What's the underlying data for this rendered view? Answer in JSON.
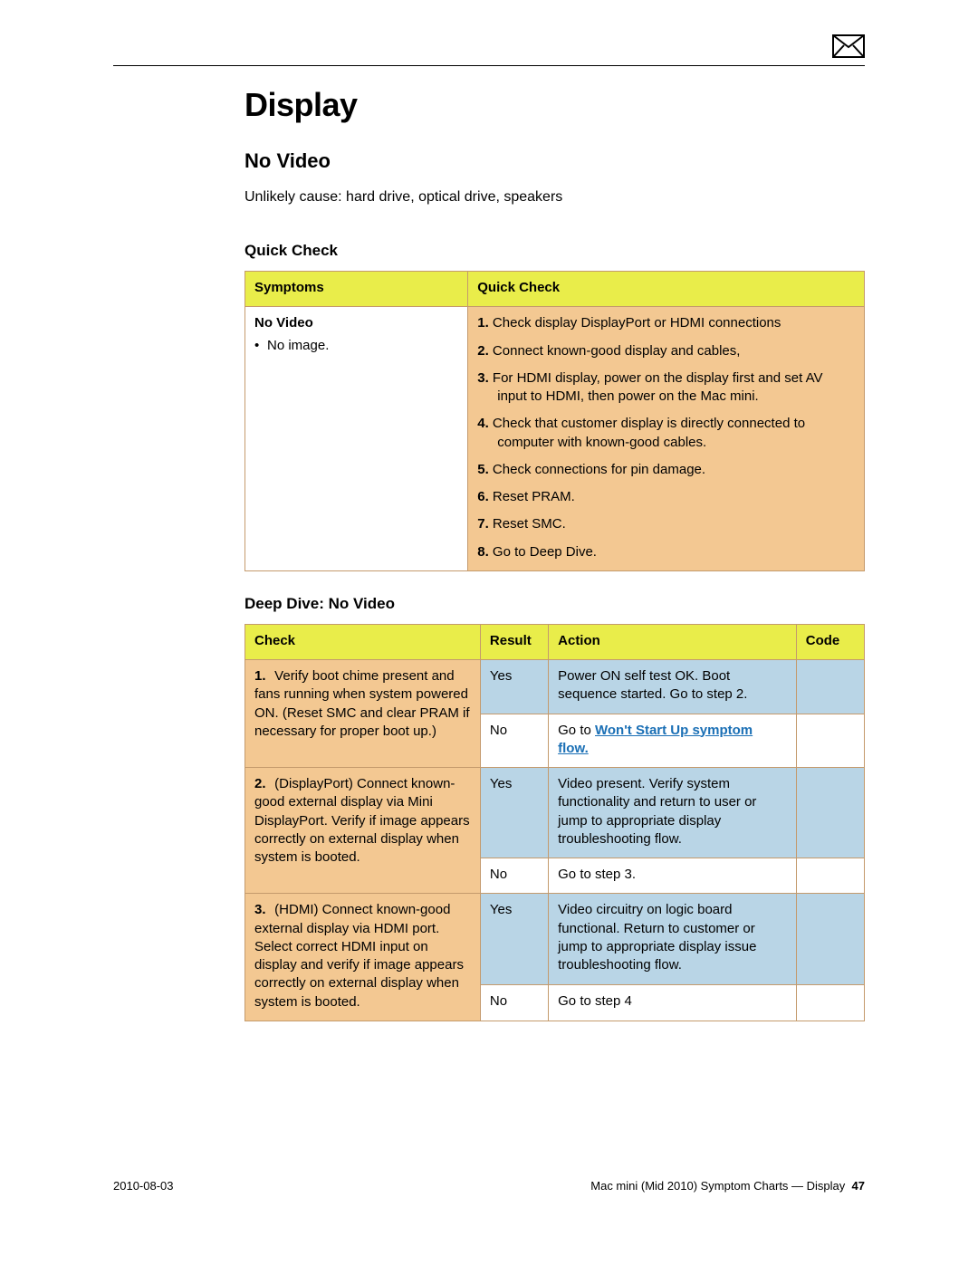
{
  "colors": {
    "header_bg": "#e9ed4a",
    "orange_bg": "#f3c892",
    "blue_bg": "#b9d5e6",
    "border": "#c49a6c",
    "link": "#1a6fb5"
  },
  "fonts": {
    "h1_size_pt": 27,
    "h2_size_pt": 16,
    "h3_size_pt": 13,
    "body_size_pt": 11
  },
  "header": {
    "title": "Display",
    "section": "No Video",
    "cause_line": "Unlikely cause:  hard drive, optical drive, speakers"
  },
  "quick_check": {
    "heading": "Quick Check",
    "col_symptoms": "Symptoms",
    "col_quickcheck": "Quick Check",
    "symptom_title": "No Video",
    "symptom_bullets": [
      "No image."
    ],
    "steps": [
      "Check display DisplayPort or HDMI connections",
      "Connect known-good display and cables,",
      "For HDMI display, power on the display first and set AV input to HDMI, then power on the Mac mini.",
      "Check that customer display is directly connected to computer with known-good cables.",
      "Check connections for pin damage.",
      "Reset PRAM.",
      "Reset SMC.",
      "Go to Deep Dive."
    ]
  },
  "deep_dive": {
    "heading": "Deep Dive: No Video",
    "col_check": "Check",
    "col_result": "Result",
    "col_action": "Action",
    "col_code": "Code",
    "rows": [
      {
        "num": "1.",
        "check": "Verify boot chime present and fans running when system powered ON. (Reset SMC and clear PRAM if necessary for proper boot up.)",
        "yes_label": "Yes",
        "yes_action": "Power ON self test OK. Boot sequence started.\nGo to step 2.",
        "no_label": "No",
        "no_action_prefix": "Go to ",
        "no_action_link": "Won't Start Up symptom flow."
      },
      {
        "num": "2.",
        "check": "(DisplayPort) Connect known-good external display via Mini DisplayPort. Verify if image appears correctly on external display when system is booted.",
        "yes_label": "Yes",
        "yes_action": "Video present. Verify system functionality and return to user or jump to appropriate display troubleshooting flow.",
        "no_label": "No",
        "no_action": "Go to step 3."
      },
      {
        "num": "3.",
        "check": "(HDMI) Connect known-good external display via HDMI port. Select correct HDMI input on display and verify if image appears correctly on external display when system is booted.",
        "yes_label": "Yes",
        "yes_action": "Video circuitry on logic board functional. Return to customer or jump to appropriate display issue troubleshooting flow.",
        "no_label": "No",
        "no_action": "Go to step 4"
      }
    ]
  },
  "footer": {
    "date": "2010-08-03",
    "right_text": "Mac mini (Mid 2010) Symptom Charts — Display",
    "page": "47"
  }
}
